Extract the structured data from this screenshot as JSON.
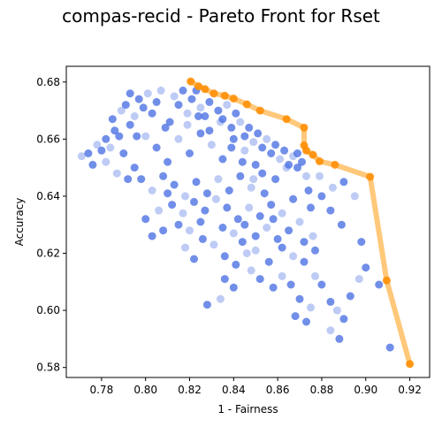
{
  "chart_data": {
    "type": "scatter",
    "title": "compas-recid - Pareto Front for Rset",
    "xlabel": "1 - Fairness",
    "ylabel": "Accuracy",
    "xlim": [
      0.764,
      0.929
    ],
    "ylim": [
      0.5765,
      0.6855
    ],
    "xticks": [
      0.78,
      0.8,
      0.82,
      0.84,
      0.86,
      0.88,
      0.9,
      0.92
    ],
    "xtick_labels": [
      "0.78",
      "0.80",
      "0.82",
      "0.84",
      "0.86",
      "0.88",
      "0.90",
      "0.92"
    ],
    "yticks": [
      0.58,
      0.6,
      0.62,
      0.64,
      0.66,
      0.68
    ],
    "ytick_labels": [
      "0.58",
      "0.60",
      "0.62",
      "0.64",
      "0.66",
      "0.68"
    ],
    "grid": false,
    "series": [
      {
        "marker": "scatter-points",
        "color": "#4169e1",
        "points": [
          [
            0.771,
            0.654
          ],
          [
            0.774,
            0.655
          ],
          [
            0.776,
            0.651
          ],
          [
            0.778,
            0.658
          ],
          [
            0.78,
            0.656
          ],
          [
            0.782,
            0.66
          ],
          [
            0.784,
            0.657
          ],
          [
            0.786,
            0.663
          ],
          [
            0.788,
            0.661
          ],
          [
            0.789,
            0.67
          ],
          [
            0.791,
            0.672
          ],
          [
            0.793,
            0.665
          ],
          [
            0.795,
            0.668
          ],
          [
            0.797,
            0.674
          ],
          [
            0.799,
            0.671
          ],
          [
            0.801,
            0.676
          ],
          [
            0.803,
            0.669
          ],
          [
            0.805,
            0.673
          ],
          [
            0.807,
            0.677
          ],
          [
            0.809,
            0.664
          ],
          [
            0.811,
            0.666
          ],
          [
            0.813,
            0.675
          ],
          [
            0.815,
            0.672
          ],
          [
            0.817,
            0.677
          ],
          [
            0.819,
            0.669
          ],
          [
            0.821,
            0.674
          ],
          [
            0.823,
            0.677
          ],
          [
            0.825,
            0.671
          ],
          [
            0.827,
            0.668
          ],
          [
            0.829,
            0.673
          ],
          [
            0.831,
            0.676
          ],
          [
            0.833,
            0.67
          ],
          [
            0.835,
            0.667
          ],
          [
            0.837,
            0.672
          ],
          [
            0.839,
            0.664
          ],
          [
            0.841,
            0.669
          ],
          [
            0.843,
            0.666
          ],
          [
            0.845,
            0.661
          ],
          [
            0.847,
            0.664
          ],
          [
            0.849,
            0.659
          ],
          [
            0.851,
            0.662
          ],
          [
            0.853,
            0.657
          ],
          [
            0.855,
            0.66
          ],
          [
            0.857,
            0.655
          ],
          [
            0.859,
            0.658
          ],
          [
            0.861,
            0.653
          ],
          [
            0.863,
            0.656
          ],
          [
            0.865,
            0.651
          ],
          [
            0.867,
            0.654
          ],
          [
            0.869,
            0.65
          ],
          [
            0.871,
            0.652
          ],
          [
            0.873,
            0.647
          ],
          [
            0.79,
            0.655
          ],
          [
            0.795,
            0.65
          ],
          [
            0.8,
            0.661
          ],
          [
            0.805,
            0.657
          ],
          [
            0.81,
            0.652
          ],
          [
            0.815,
            0.66
          ],
          [
            0.82,
            0.655
          ],
          [
            0.825,
            0.662
          ],
          [
            0.83,
            0.658
          ],
          [
            0.835,
            0.653
          ],
          [
            0.84,
            0.66
          ],
          [
            0.845,
            0.656
          ],
          [
            0.85,
            0.651
          ],
          [
            0.798,
            0.646
          ],
          [
            0.803,
            0.642
          ],
          [
            0.808,
            0.647
          ],
          [
            0.813,
            0.644
          ],
          [
            0.818,
            0.64
          ],
          [
            0.823,
            0.645
          ],
          [
            0.828,
            0.641
          ],
          [
            0.833,
            0.646
          ],
          [
            0.838,
            0.642
          ],
          [
            0.843,
            0.647
          ],
          [
            0.848,
            0.643
          ],
          [
            0.853,
            0.648
          ],
          [
            0.812,
            0.637
          ],
          [
            0.817,
            0.634
          ],
          [
            0.822,
            0.638
          ],
          [
            0.827,
            0.635
          ],
          [
            0.832,
            0.639
          ],
          [
            0.837,
            0.636
          ],
          [
            0.842,
            0.632
          ],
          [
            0.847,
            0.636
          ],
          [
            0.852,
            0.633
          ],
          [
            0.857,
            0.637
          ],
          [
            0.862,
            0.634
          ],
          [
            0.867,
            0.639
          ],
          [
            0.815,
            0.63
          ],
          [
            0.82,
            0.628
          ],
          [
            0.825,
            0.631
          ],
          [
            0.835,
            0.629
          ],
          [
            0.84,
            0.627
          ],
          [
            0.845,
            0.63
          ],
          [
            0.85,
            0.626
          ],
          [
            0.855,
            0.629
          ],
          [
            0.86,
            0.625
          ],
          [
            0.865,
            0.628
          ],
          [
            0.87,
            0.631
          ],
          [
            0.875,
            0.636
          ],
          [
            0.88,
            0.64
          ],
          [
            0.885,
            0.643
          ],
          [
            0.89,
            0.645
          ],
          [
            0.8,
            0.632
          ],
          [
            0.806,
            0.635
          ],
          [
            0.81,
            0.641
          ],
          [
            0.844,
            0.624
          ],
          [
            0.85,
            0.621
          ],
          [
            0.856,
            0.617
          ],
          [
            0.862,
            0.622
          ],
          [
            0.867,
            0.619
          ],
          [
            0.872,
            0.624
          ],
          [
            0.877,
            0.621
          ],
          [
            0.848,
            0.614
          ],
          [
            0.852,
            0.611
          ],
          [
            0.858,
            0.608
          ],
          [
            0.862,
            0.612
          ],
          [
            0.866,
            0.609
          ],
          [
            0.87,
            0.604
          ],
          [
            0.875,
            0.601
          ],
          [
            0.868,
            0.598
          ],
          [
            0.873,
            0.596
          ],
          [
            0.877,
            0.612
          ],
          [
            0.88,
            0.609
          ],
          [
            0.884,
            0.603
          ],
          [
            0.887,
            0.6
          ],
          [
            0.89,
            0.597
          ],
          [
            0.893,
            0.605
          ],
          [
            0.897,
            0.611
          ],
          [
            0.9,
            0.615
          ],
          [
            0.906,
            0.609
          ],
          [
            0.884,
            0.593
          ],
          [
            0.888,
            0.59
          ],
          [
            0.911,
            0.587
          ],
          [
            0.787,
            0.648
          ],
          [
            0.792,
            0.646
          ],
          [
            0.796,
            0.661
          ],
          [
            0.819,
            0.665
          ],
          [
            0.824,
            0.668
          ],
          [
            0.829,
            0.663
          ],
          [
            0.834,
            0.666
          ],
          [
            0.839,
            0.657
          ],
          [
            0.844,
            0.652
          ],
          [
            0.849,
            0.646
          ],
          [
            0.854,
            0.641
          ],
          [
            0.859,
            0.646
          ],
          [
            0.864,
            0.65
          ],
          [
            0.869,
            0.655
          ],
          [
            0.874,
            0.642
          ],
          [
            0.879,
            0.647
          ],
          [
            0.884,
            0.635
          ],
          [
            0.889,
            0.63
          ],
          [
            0.895,
            0.64
          ],
          [
            0.898,
            0.624
          ],
          [
            0.872,
            0.617
          ],
          [
            0.876,
            0.626
          ],
          [
            0.858,
            0.632
          ],
          [
            0.826,
            0.625
          ],
          [
            0.831,
            0.623
          ],
          [
            0.836,
            0.619
          ],
          [
            0.841,
            0.616
          ],
          [
            0.846,
            0.62
          ],
          [
            0.836,
            0.611
          ],
          [
            0.84,
            0.608
          ],
          [
            0.834,
            0.604
          ],
          [
            0.828,
            0.602
          ],
          [
            0.822,
            0.618
          ],
          [
            0.818,
            0.622
          ],
          [
            0.808,
            0.628
          ],
          [
            0.803,
            0.626
          ],
          [
            0.782,
            0.652
          ],
          [
            0.785,
            0.667
          ],
          [
            0.793,
            0.676
          ]
        ]
      },
      {
        "marker": "pareto-front",
        "color": "#ff8c00",
        "line_color": "#ffc87a",
        "points": [
          [
            0.8205,
            0.6802
          ],
          [
            0.824,
            0.6785
          ],
          [
            0.827,
            0.6775
          ],
          [
            0.831,
            0.676
          ],
          [
            0.836,
            0.6752
          ],
          [
            0.84,
            0.6742
          ],
          [
            0.846,
            0.6722
          ],
          [
            0.852,
            0.67
          ],
          [
            0.864,
            0.667
          ],
          [
            0.872,
            0.664
          ],
          [
            0.872,
            0.6578
          ],
          [
            0.873,
            0.656
          ],
          [
            0.876,
            0.6545
          ],
          [
            0.879,
            0.6522
          ],
          [
            0.886,
            0.651
          ],
          [
            0.902,
            0.6468
          ],
          [
            0.9095,
            0.6105
          ],
          [
            0.92,
            0.5812
          ]
        ]
      }
    ]
  }
}
